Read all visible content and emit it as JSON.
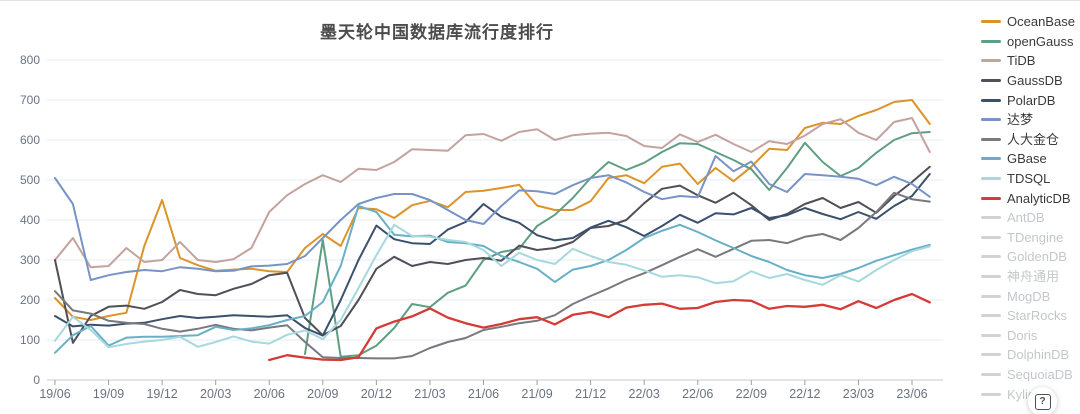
{
  "title": "墨天轮中国数据库流行度排行",
  "help_button": {
    "label": "?"
  },
  "chart_data": {
    "type": "line",
    "title": "墨天轮中国数据库流行度排行",
    "x_interval": "monthly",
    "x_tick_labels": [
      "19/06",
      "19/09",
      "19/12",
      "20/03",
      "20/06",
      "20/09",
      "20/12",
      "21/03",
      "21/06",
      "21/09",
      "21/12",
      "22/03",
      "22/06",
      "22/09",
      "22/12",
      "23/03",
      "23/06"
    ],
    "y_ticks": [
      0,
      100,
      200,
      300,
      400,
      500,
      600,
      700,
      800
    ],
    "ylim": [
      0,
      800
    ],
    "grid": true,
    "legend_position": "right",
    "colors": {
      "grid_line": "#e4ebf4",
      "axis_line": "#c9c9c9",
      "tick_text": "#6b7380",
      "disabled_legend": "#d0d3d6"
    },
    "series": [
      {
        "name": "OceanBase",
        "color": "#dd9327",
        "values": [
          205,
          158,
          150,
          160,
          168,
          335,
          450,
          305,
          287,
          273,
          276,
          278,
          272,
          270,
          330,
          365,
          335,
          430,
          427,
          405,
          437,
          448,
          432,
          470,
          473,
          480,
          488,
          436,
          425,
          425,
          447,
          505,
          512,
          492,
          533,
          541,
          490,
          530,
          497,
          533,
          578,
          575,
          630,
          643,
          640,
          660,
          675,
          695,
          700,
          640
        ]
      },
      {
        "name": "openGauss",
        "color": "#5e9e81",
        "values": [
          null,
          null,
          null,
          null,
          null,
          null,
          null,
          null,
          null,
          null,
          null,
          null,
          null,
          null,
          65,
          350,
          58,
          62,
          86,
          130,
          190,
          182,
          218,
          236,
          300,
          320,
          328,
          385,
          413,
          455,
          505,
          545,
          525,
          543,
          570,
          592,
          590,
          570,
          550,
          527,
          475,
          530,
          593,
          545,
          510,
          530,
          568,
          600,
          617,
          620
        ]
      },
      {
        "name": "TiDB",
        "color": "#c4a29e",
        "values": [
          300,
          355,
          282,
          285,
          330,
          295,
          300,
          345,
          300,
          295,
          302,
          330,
          420,
          462,
          490,
          512,
          495,
          528,
          525,
          545,
          577,
          575,
          573,
          612,
          615,
          598,
          620,
          627,
          600,
          612,
          616,
          618,
          610,
          585,
          580,
          614,
          595,
          613,
          590,
          570,
          597,
          590,
          611,
          640,
          652,
          618,
          600,
          645,
          655,
          570
        ]
      },
      {
        "name": "GaussDB",
        "color": "#4f4f57",
        "values": [
          300,
          93,
          160,
          183,
          186,
          178,
          195,
          225,
          215,
          212,
          228,
          240,
          262,
          268,
          155,
          112,
          135,
          200,
          278,
          308,
          285,
          295,
          290,
          300,
          305,
          298,
          336,
          325,
          330,
          345,
          380,
          385,
          400,
          442,
          478,
          486,
          462,
          443,
          468,
          437,
          400,
          415,
          440,
          455,
          430,
          445,
          418,
          460,
          495,
          533
        ]
      },
      {
        "name": "PolarDB",
        "color": "#3a506c",
        "values": [
          160,
          134,
          138,
          136,
          141,
          143,
          152,
          160,
          155,
          158,
          162,
          160,
          158,
          162,
          130,
          111,
          200,
          300,
          386,
          352,
          342,
          340,
          376,
          395,
          440,
          408,
          393,
          362,
          349,
          355,
          381,
          398,
          382,
          360,
          385,
          413,
          393,
          417,
          414,
          430,
          405,
          412,
          430,
          415,
          402,
          420,
          403,
          435,
          460,
          515
        ]
      },
      {
        "name": "达梦",
        "color": "#7794c5",
        "values": [
          505,
          440,
          250,
          262,
          270,
          275,
          272,
          282,
          278,
          272,
          273,
          284,
          286,
          290,
          310,
          355,
          400,
          440,
          455,
          465,
          465,
          450,
          425,
          400,
          390,
          435,
          474,
          472,
          465,
          487,
          505,
          512,
          494,
          470,
          452,
          460,
          457,
          560,
          522,
          546,
          490,
          470,
          515,
          512,
          508,
          503,
          487,
          508,
          490,
          458
        ]
      },
      {
        "name": "人大金仓",
        "color": "#78787e",
        "values": [
          222,
          174,
          166,
          148,
          143,
          140,
          128,
          121,
          128,
          138,
          128,
          124,
          131,
          137,
          95,
          57,
          55,
          55,
          54,
          54,
          60,
          80,
          95,
          105,
          125,
          133,
          142,
          148,
          162,
          190,
          210,
          229,
          250,
          267,
          287,
          308,
          327,
          308,
          328,
          348,
          350,
          342,
          358,
          365,
          350,
          380,
          420,
          468,
          452,
          446
        ]
      },
      {
        "name": "GBase",
        "color": "#68b0c6",
        "values": [
          68,
          112,
          135,
          86,
          106,
          108,
          108,
          110,
          112,
          133,
          125,
          129,
          137,
          150,
          160,
          195,
          285,
          435,
          420,
          363,
          359,
          361,
          345,
          342,
          335,
          310,
          295,
          278,
          245,
          276,
          285,
          300,
          325,
          355,
          373,
          388,
          370,
          349,
          330,
          310,
          295,
          275,
          262,
          255,
          265,
          280,
          298,
          312,
          326,
          338
        ]
      },
      {
        "name": "TDSQL",
        "color": "#a6d8dd",
        "values": [
          98,
          158,
          125,
          82,
          90,
          96,
          100,
          108,
          83,
          95,
          109,
          96,
          91,
          113,
          124,
          102,
          150,
          230,
          312,
          388,
          360,
          358,
          350,
          345,
          325,
          285,
          318,
          300,
          290,
          328,
          310,
          295,
          288,
          274,
          258,
          262,
          257,
          242,
          247,
          272,
          255,
          265,
          250,
          238,
          262,
          246,
          275,
          300,
          322,
          334
        ]
      },
      {
        "name": "AnalyticDB",
        "color": "#d53b36",
        "values": [
          null,
          null,
          null,
          null,
          null,
          null,
          null,
          null,
          null,
          null,
          null,
          null,
          50,
          62,
          56,
          51,
          50,
          57,
          129,
          146,
          159,
          179,
          156,
          142,
          131,
          140,
          152,
          157,
          139,
          163,
          170,
          157,
          181,
          188,
          191,
          178,
          180,
          195,
          200,
          198,
          178,
          185,
          183,
          188,
          177,
          197,
          180,
          200,
          215,
          194
        ]
      }
    ],
    "disabled_series": [
      "AntDB",
      "TDengine",
      "GoldenDB",
      "神舟通用",
      "MogDB",
      "StarRocks",
      "Doris",
      "DolphinDB",
      "SequoiaDB",
      "Kylig"
    ]
  }
}
